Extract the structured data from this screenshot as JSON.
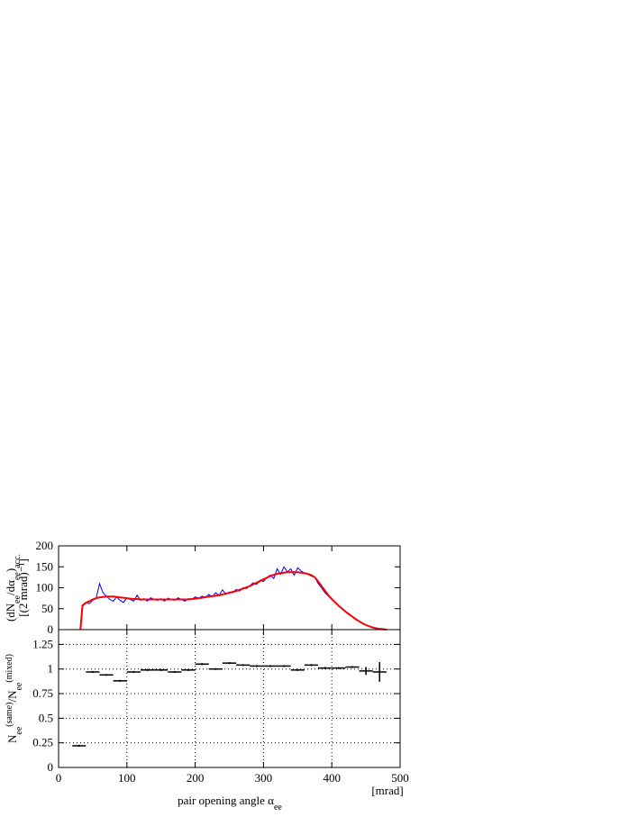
{
  "chart_data": [
    {
      "type": "line",
      "ylabel": [
        "(dN",
        "ee",
        "/dα",
        "ee",
        ")",
        "acc."
      ],
      "ylabel_style": [
        "normal",
        "sub",
        "normal",
        "sub",
        "normal",
        "sub"
      ],
      "ylabel2": "[(2 mrad)⁻¹]",
      "x": [
        32,
        35,
        40,
        45,
        50,
        55,
        60,
        65,
        70,
        75,
        80,
        85,
        90,
        95,
        100,
        105,
        110,
        115,
        120,
        125,
        130,
        135,
        140,
        145,
        150,
        155,
        160,
        165,
        170,
        175,
        180,
        185,
        190,
        195,
        200,
        205,
        210,
        215,
        220,
        225,
        230,
        235,
        240,
        245,
        250,
        255,
        260,
        265,
        270,
        275,
        280,
        285,
        290,
        295,
        300,
        305,
        310,
        315,
        320,
        325,
        330,
        335,
        340,
        345,
        350,
        355,
        360,
        365,
        370,
        375,
        380,
        385,
        390,
        395,
        400,
        405,
        410,
        415,
        420,
        425,
        430,
        435,
        440,
        445,
        450,
        455,
        460,
        465,
        470,
        475,
        480
      ],
      "series": [
        {
          "color": "#0000ff",
          "values": [
            0,
            55,
            65,
            62,
            70,
            75,
            110,
            88,
            80,
            72,
            68,
            78,
            70,
            65,
            76,
            72,
            68,
            82,
            70,
            74,
            68,
            76,
            72,
            70,
            74,
            68,
            75,
            72,
            70,
            76,
            72,
            68,
            74,
            72,
            78,
            75,
            80,
            76,
            84,
            78,
            88,
            82,
            95,
            84,
            90,
            88,
            96,
            92,
            100,
            98,
            105,
            112,
            108,
            118,
            115,
            125,
            130,
            122,
            145,
            132,
            150,
            138,
            145,
            130,
            148,
            140,
            135,
            132,
            128,
            125,
            110,
            100,
            88,
            80,
            72,
            65,
            58,
            50,
            44,
            38,
            32,
            26,
            20,
            16,
            12,
            8,
            6,
            4,
            2,
            1,
            0
          ]
        },
        {
          "color": "#ff0000",
          "values": [
            0,
            58,
            64,
            68,
            72,
            75,
            77,
            78,
            79,
            79,
            79,
            78,
            77,
            76,
            75,
            74,
            73,
            73,
            72,
            72,
            72,
            72,
            72,
            72,
            72,
            72,
            72,
            72,
            72,
            72,
            72,
            72,
            72,
            73,
            74,
            75,
            76,
            78,
            79,
            80,
            81,
            82,
            84,
            86,
            88,
            90,
            92,
            95,
            98,
            101,
            104,
            108,
            112,
            116,
            120,
            124,
            128,
            131,
            133,
            135,
            136,
            137,
            137,
            137,
            137,
            136,
            135,
            133,
            130,
            125,
            115,
            104,
            93,
            82,
            73,
            65,
            57,
            50,
            43,
            37,
            31,
            25,
            20,
            15,
            11,
            8,
            5,
            3,
            2,
            1,
            0
          ]
        }
      ],
      "xlim": [
        0,
        500
      ],
      "xticks": [
        0,
        100,
        200,
        300,
        400,
        500
      ],
      "ylim": [
        0,
        200
      ],
      "yticks": [
        0,
        50,
        100,
        150,
        200
      ],
      "grid": false
    },
    {
      "type": "errorbar",
      "ylabel": [
        "N",
        "ee",
        "(same)",
        "/N",
        "ee",
        "(mixed)"
      ],
      "ylabel_style": [
        "normal",
        "sub",
        "sup",
        "normal",
        "sub",
        "sup"
      ],
      "xlabel": [
        "pair opening angle α",
        "ee"
      ],
      "xlabel_style": [
        "normal",
        "sub"
      ],
      "xunit": "[mrad]",
      "x": [
        30,
        50,
        70,
        90,
        110,
        130,
        150,
        170,
        190,
        210,
        230,
        250,
        270,
        290,
        310,
        330,
        350,
        370,
        390,
        410,
        430,
        450,
        470
      ],
      "values": [
        0.22,
        0.97,
        0.94,
        0.88,
        0.97,
        0.99,
        0.99,
        0.97,
        0.99,
        1.05,
        1.0,
        1.06,
        1.04,
        1.03,
        1.03,
        1.03,
        0.99,
        1.04,
        1.01,
        1.01,
        1.02,
        0.98,
        0.97
      ],
      "errors": [
        0.01,
        0.01,
        0.01,
        0.01,
        0.01,
        0.01,
        0.01,
        0.01,
        0.01,
        0.01,
        0.01,
        0.01,
        0.01,
        0.01,
        0.01,
        0.01,
        0.01,
        0.01,
        0.01,
        0.01,
        0.01,
        0.04,
        0.1
      ],
      "xerr": 10,
      "color": "#000000",
      "xlim": [
        0,
        500
      ],
      "xticks": [
        0,
        100,
        200,
        300,
        400,
        500
      ],
      "ylim": [
        0,
        1.4
      ],
      "yticks": [
        0,
        0.25,
        0.5,
        0.75,
        1,
        1.25
      ],
      "grid": true
    }
  ]
}
